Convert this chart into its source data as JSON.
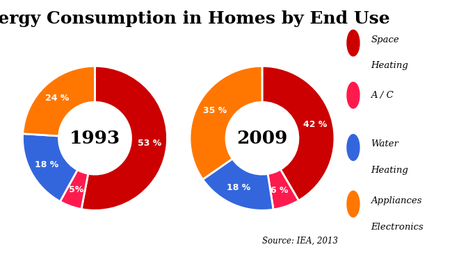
{
  "title": "Energy Consumption in Homes by End Use",
  "title_fontsize": 18,
  "title_fontweight": "bold",
  "source_text": "Source: IEA, 2013",
  "chart1_year": "1993",
  "chart2_year": "2009",
  "colors": {
    "space_heating": "#cc0000",
    "ac": "#ff1a4e",
    "water_heating": "#3366dd",
    "appliances": "#ff7700"
  },
  "chart1_values": [
    53,
    5,
    18,
    24
  ],
  "chart1_labels": [
    "53 %",
    "5%",
    "18 %",
    "24 %"
  ],
  "chart2_values": [
    42,
    6,
    18,
    35
  ],
  "chart2_labels": [
    "42 %",
    "6 %",
    "18 %",
    "35 %"
  ],
  "legend_labels": [
    "Space\nHeating",
    "A / C",
    "Water\nHeating",
    "Appliances\nElectronics"
  ],
  "background_color": "#ffffff",
  "wedge_order": [
    "space_heating",
    "ac",
    "water_heating",
    "appliances"
  ]
}
